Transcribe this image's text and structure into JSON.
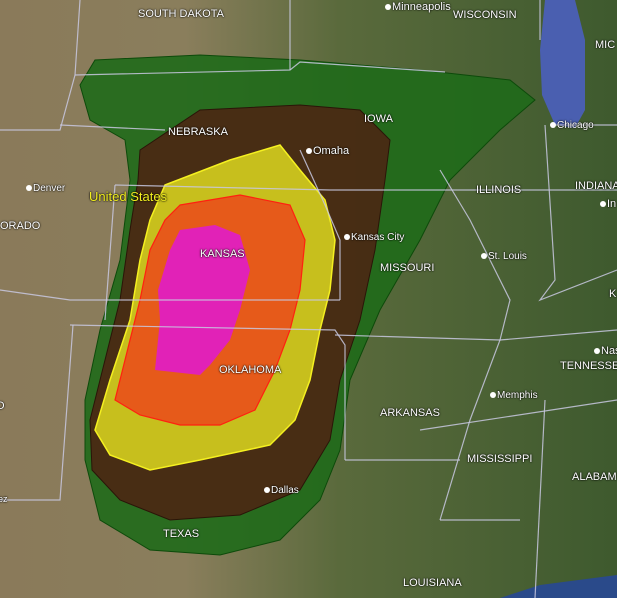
{
  "map": {
    "type": "satellite",
    "overlay_colors": {
      "outer": "#1f6a1a",
      "second": "#4a2a14",
      "third": "#d8d020",
      "fourth": "#e8541a",
      "inner": "#e020c0"
    },
    "country_label": "United States",
    "state_labels": [
      "SOUTH DAKOTA",
      "WISCONSIN",
      "MIC",
      "NEBRASKA",
      "IOWA",
      "ILLINOIS",
      "INDIANA",
      "ORADO",
      "KANSAS",
      "MISSOURI",
      "K",
      "O",
      "OKLAHOMA",
      "TENNESSE",
      "ARKANSAS",
      "MISSISSIPPI",
      "ALABAM",
      "TEXAS",
      "LOUISIANA",
      "ez"
    ],
    "cities": [
      "Minneapolis",
      "Omaha",
      "Chicago",
      "Denver",
      "Kansas City",
      "St. Louis",
      "In",
      "Nas",
      "Memphis",
      "Dallas"
    ]
  }
}
